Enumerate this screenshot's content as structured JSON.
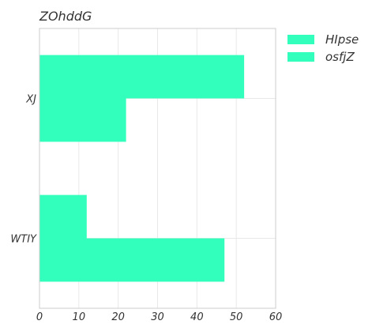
{
  "chart_data": {
    "type": "bar",
    "orientation": "horizontal",
    "title": "ZOhddG",
    "xlabel": "",
    "ylabel": "",
    "categories": [
      "XJ",
      "WTIY"
    ],
    "series": [
      {
        "name": "HIpse",
        "values": [
          52,
          12
        ],
        "color": "#33ffbd"
      },
      {
        "name": "osfjZ",
        "values": [
          22,
          47
        ],
        "color": "#33ffbd"
      }
    ],
    "xlim": [
      0,
      60
    ],
    "xticks": [
      0,
      10,
      20,
      30,
      40,
      50,
      60
    ],
    "grid": true,
    "legend": "top-right"
  }
}
